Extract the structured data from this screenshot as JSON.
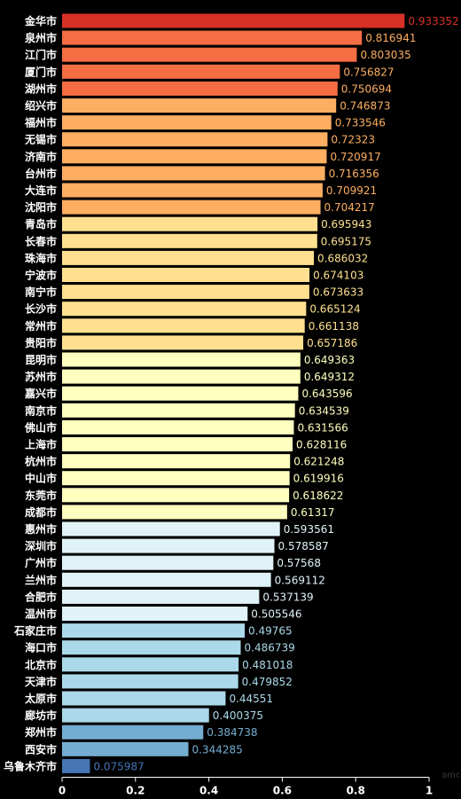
{
  "chart_data": {
    "type": "bar",
    "orientation": "horizontal",
    "categories": [
      "金华市",
      "泉州市",
      "江门市",
      "厦门市",
      "湖州市",
      "绍兴市",
      "福州市",
      "无锡市",
      "济南市",
      "台州市",
      "大连市",
      "沈阳市",
      "青岛市",
      "长春市",
      "珠海市",
      "宁波市",
      "南宁市",
      "长沙市",
      "常州市",
      "贵阳市",
      "昆明市",
      "苏州市",
      "嘉兴市",
      "南京市",
      "佛山市",
      "上海市",
      "杭州市",
      "中山市",
      "东莞市",
      "成都市",
      "惠州市",
      "深圳市",
      "广州市",
      "兰州市",
      "合肥市",
      "温州市",
      "石家庄市",
      "海口市",
      "北京市",
      "天津市",
      "太原市",
      "廊坊市",
      "郑州市",
      "西安市",
      "乌鲁木齐市"
    ],
    "values": [
      0.933352,
      0.816941,
      0.803035,
      0.756827,
      0.750694,
      0.746873,
      0.733546,
      0.72323,
      0.720917,
      0.716356,
      0.709921,
      0.704217,
      0.695943,
      0.695175,
      0.686032,
      0.674103,
      0.673633,
      0.665124,
      0.661138,
      0.657186,
      0.649363,
      0.649312,
      0.643596,
      0.634539,
      0.631566,
      0.628116,
      0.621248,
      0.619916,
      0.618622,
      0.61317,
      0.593561,
      0.578587,
      0.57568,
      0.569112,
      0.537139,
      0.505546,
      0.49765,
      0.486739,
      0.481018,
      0.479852,
      0.44551,
      0.400375,
      0.384738,
      0.344285,
      0.075987
    ],
    "value_labels": [
      "0.933352",
      "0.816941",
      "0.803035",
      "0.756827",
      "0.750694",
      "0.746873",
      "0.733546",
      "0.72323",
      "0.720917",
      "0.716356",
      "0.709921",
      "0.704217",
      "0.695943",
      "0.695175",
      "0.686032",
      "0.674103",
      "0.673633",
      "0.665124",
      "0.661138",
      "0.657186",
      "0.649363",
      "0.649312",
      "0.643596",
      "0.634539",
      "0.631566",
      "0.628116",
      "0.621248",
      "0.619916",
      "0.618622",
      "0.61317",
      "0.593561",
      "0.578587",
      "0.57568",
      "0.569112",
      "0.537139",
      "0.505546",
      "0.49765",
      "0.486739",
      "0.481018",
      "0.479852",
      "0.44551",
      "0.400375",
      "0.384738",
      "0.344285",
      "0.075987"
    ],
    "xlim": [
      0,
      1
    ],
    "x_ticks": [
      "0",
      "0.2",
      "0.4",
      "0.6",
      "0.8",
      "1"
    ],
    "grid": false,
    "color_scale": [
      {
        "min": 0.9,
        "bar": "#d73027",
        "text": "#d73027"
      },
      {
        "min": 0.75,
        "bar": "#f46d43",
        "text": "#fdae61"
      },
      {
        "min": 0.7,
        "bar": "#fdae61",
        "text": "#fdae61"
      },
      {
        "min": 0.65,
        "bar": "#fee090",
        "text": "#fee090"
      },
      {
        "min": 0.6,
        "bar": "#ffffbf",
        "text": "#ffffbf"
      },
      {
        "min": 0.5,
        "bar": "#e0f3f8",
        "text": "#e0f3f8"
      },
      {
        "min": 0.4,
        "bar": "#abd9e9",
        "text": "#abd9e9"
      },
      {
        "min": 0.1,
        "bar": "#74add1",
        "text": "#74add1"
      },
      {
        "min": 0.0,
        "bar": "#4575b4",
        "text": "#4575b4"
      }
    ],
    "background": "#000000",
    "axis_color": "#ffffff"
  },
  "watermark": "amc"
}
